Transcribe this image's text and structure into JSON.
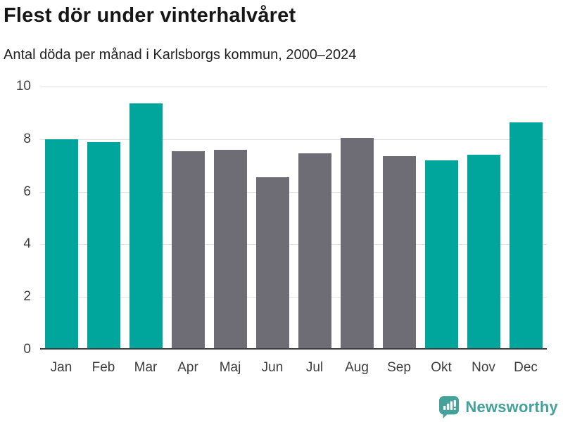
{
  "header": {
    "title": "Flest dör under vinterhalvåret",
    "subtitle": "Antal döda per månad i Karlsborgs kommun, 2000–2024"
  },
  "chart_data": {
    "type": "bar",
    "title": "Flest dör under vinterhalvåret",
    "subtitle": "Antal döda per månad i Karlsborgs kommun, 2000–2024",
    "categories": [
      "Jan",
      "Feb",
      "Mar",
      "Apr",
      "Maj",
      "Jun",
      "Jul",
      "Aug",
      "Sep",
      "Okt",
      "Nov",
      "Dec"
    ],
    "values": [
      8.0,
      7.9,
      9.35,
      7.55,
      7.6,
      6.55,
      7.45,
      8.05,
      7.35,
      7.2,
      7.4,
      8.65
    ],
    "highlighted": [
      true,
      true,
      true,
      false,
      false,
      false,
      false,
      false,
      false,
      true,
      true,
      true
    ],
    "xlabel": "",
    "ylabel": "",
    "ylim": [
      0,
      10
    ],
    "yticks": [
      0,
      2,
      4,
      6,
      8,
      10
    ],
    "grid": true,
    "legend": "none",
    "colors": {
      "highlight": "#00a59b",
      "base": "#6e6d76",
      "gridline": "#e3e3e3",
      "axis": "#404040"
    }
  },
  "footer": {
    "brand": "Newsworthy",
    "brand_color": "#45a29a",
    "logo_icon": "bar-chart-speech-bubble-icon"
  }
}
